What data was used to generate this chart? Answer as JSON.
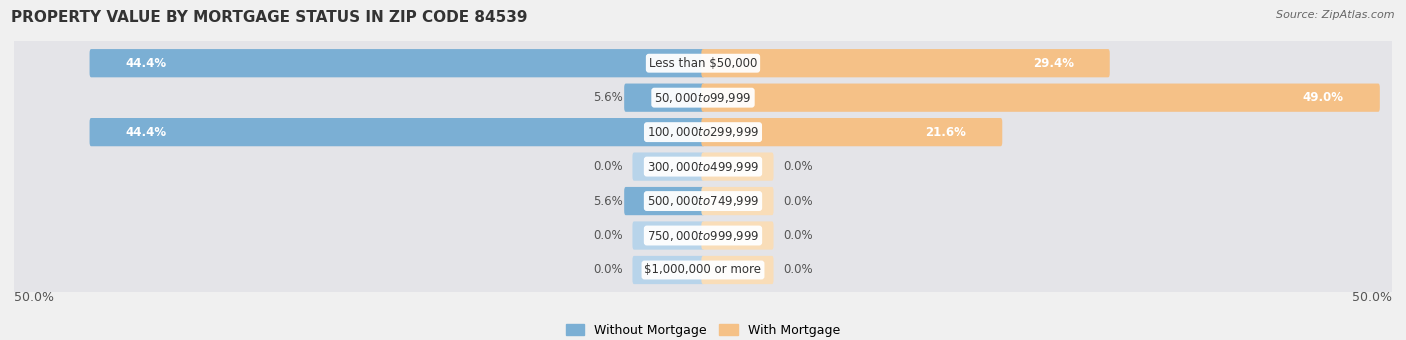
{
  "title": "PROPERTY VALUE BY MORTGAGE STATUS IN ZIP CODE 84539",
  "source": "Source: ZipAtlas.com",
  "categories": [
    "Less than $50,000",
    "$50,000 to $99,999",
    "$100,000 to $299,999",
    "$300,000 to $499,999",
    "$500,000 to $749,999",
    "$750,000 to $999,999",
    "$1,000,000 or more"
  ],
  "without_mortgage": [
    44.4,
    5.6,
    44.4,
    0.0,
    5.6,
    0.0,
    0.0
  ],
  "with_mortgage": [
    29.4,
    49.0,
    21.6,
    0.0,
    0.0,
    0.0,
    0.0
  ],
  "color_without": "#7bafd4",
  "color_with": "#f5c187",
  "color_without_light": "#b8d4ea",
  "color_with_light": "#f9ddb8",
  "axis_min": -50.0,
  "axis_max": 50.0,
  "background_color": "#f0f0f0",
  "bar_background_color": "#e4e4e8",
  "title_fontsize": 11,
  "source_fontsize": 8,
  "label_fontsize": 8.5,
  "legend_fontsize": 9,
  "axis_label_fontsize": 9,
  "zero_stub": 5.0
}
